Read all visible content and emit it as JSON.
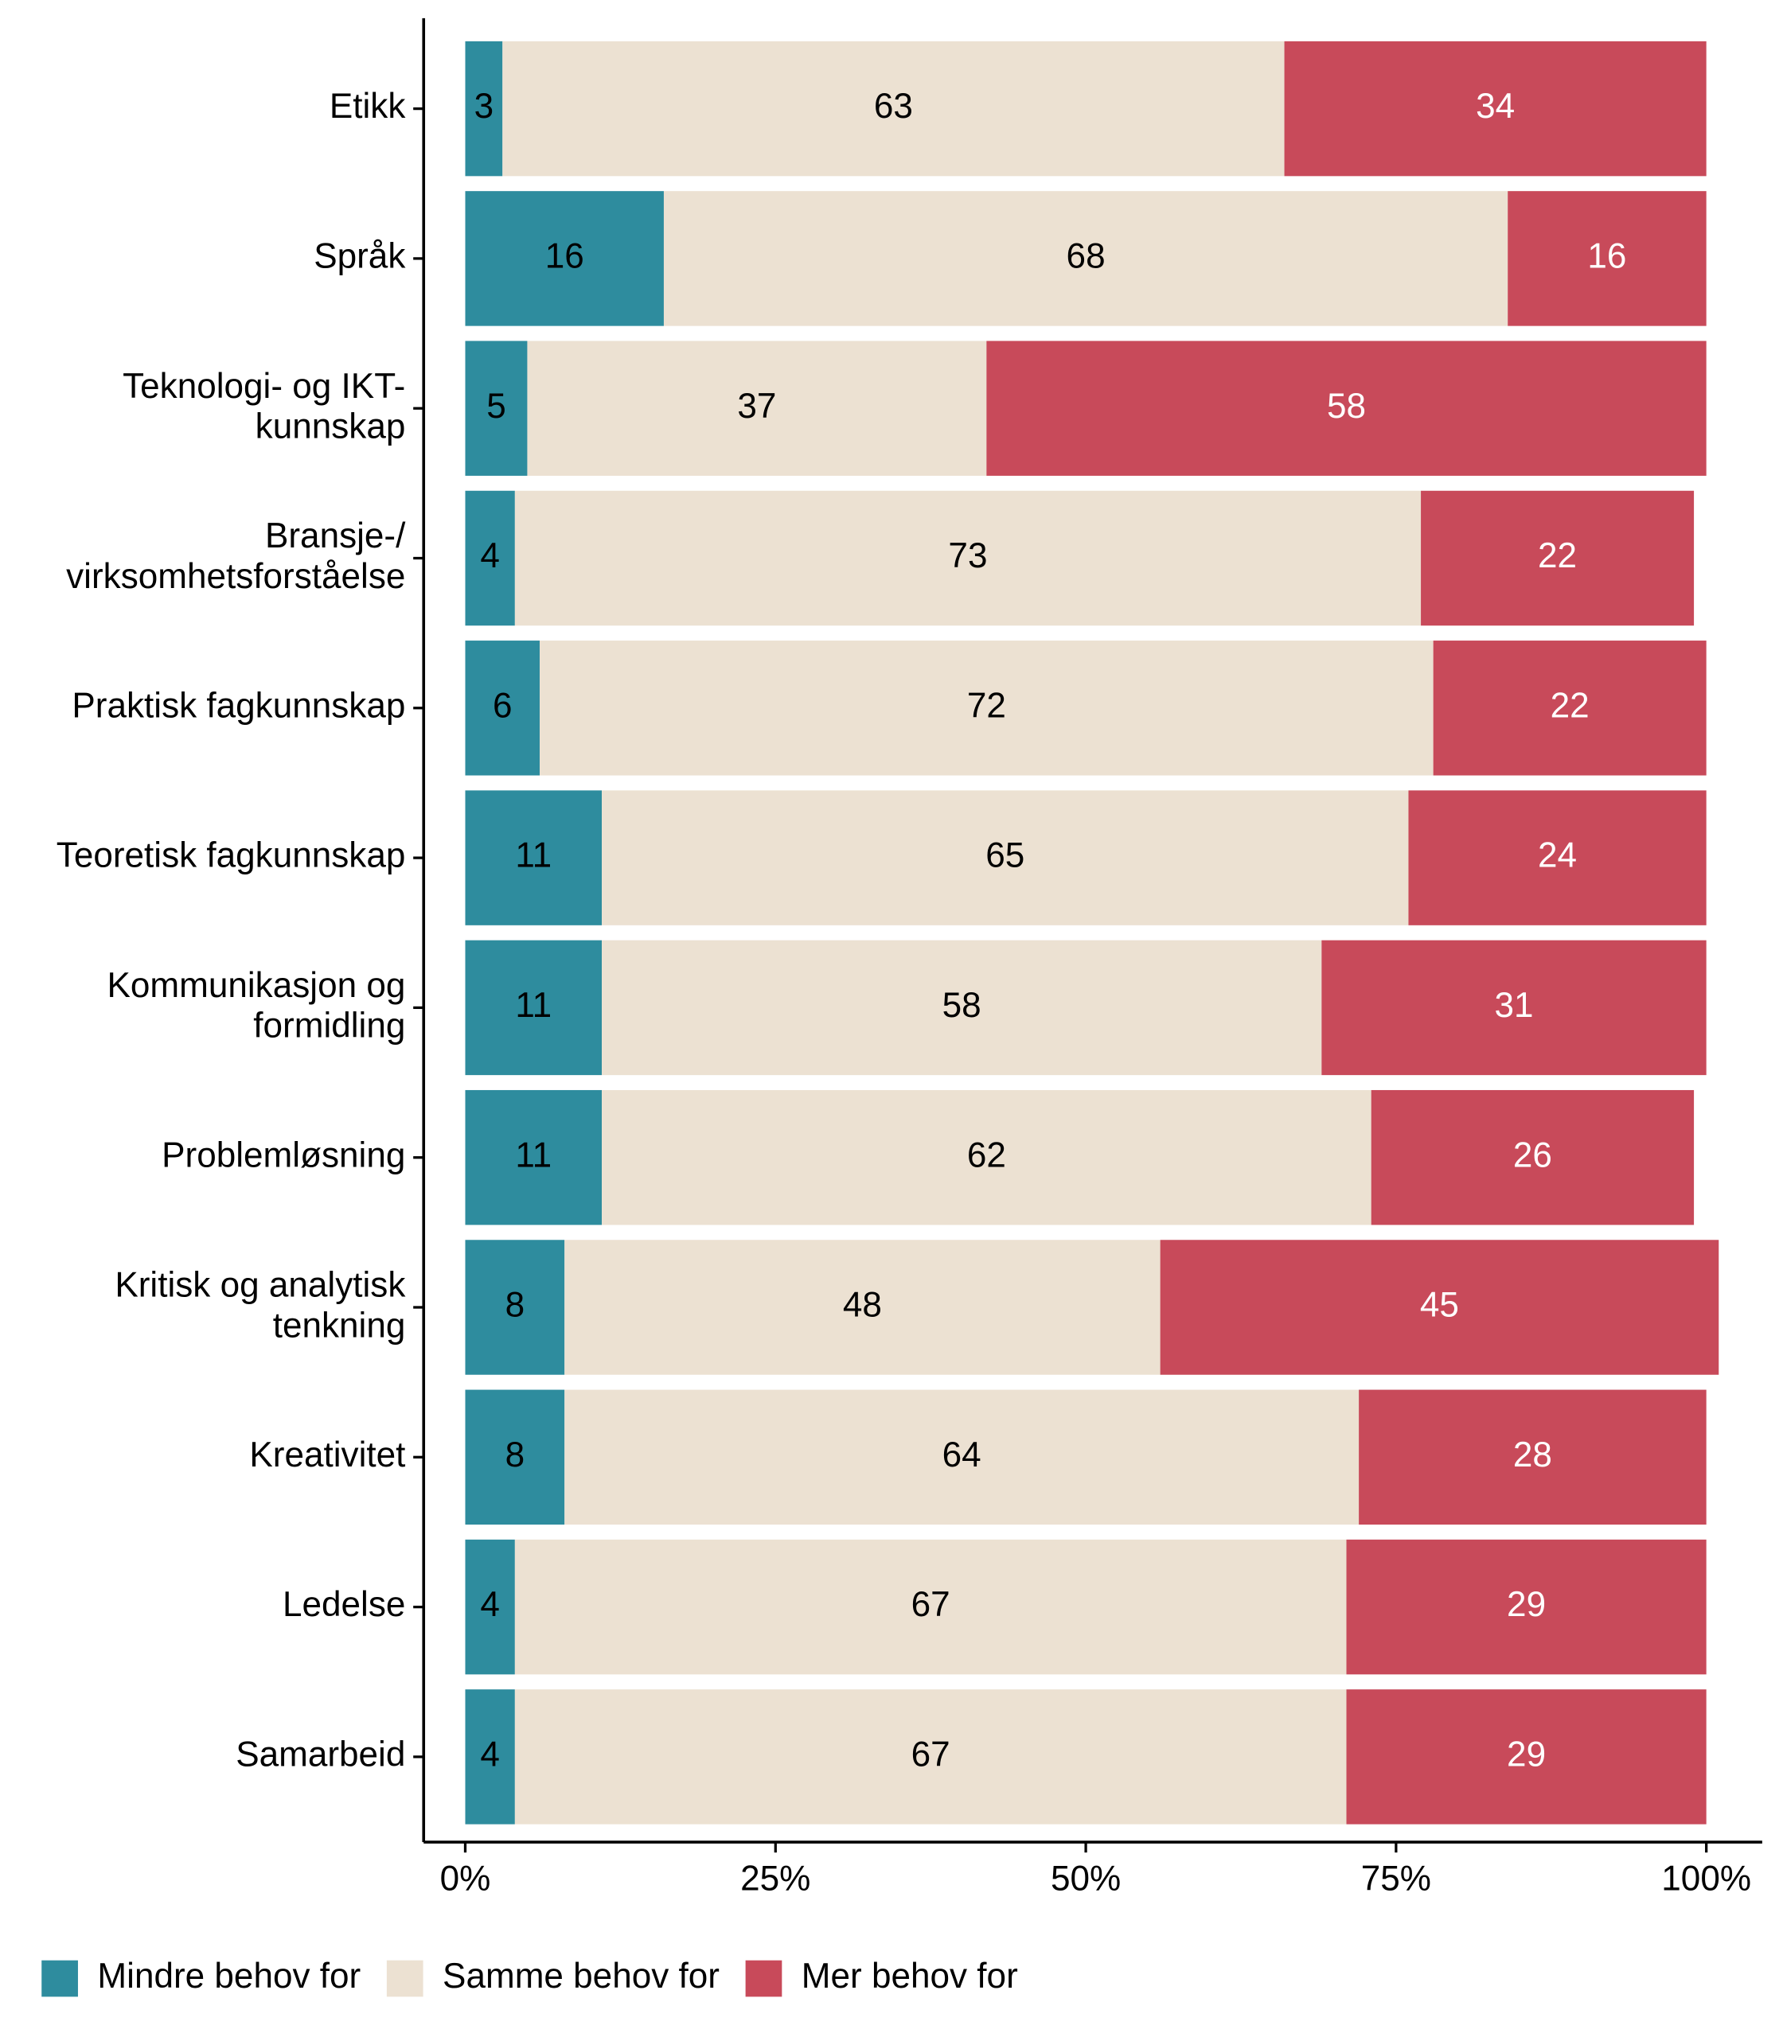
{
  "chart_data": {
    "type": "stacked-bar-horizontal",
    "categories": [
      "Etikk",
      "Språk",
      "Teknologi- og IKT-\nkunnskap",
      "Bransje-/\nvirksomhetsforståelse",
      "Praktisk fagkunnskap",
      "Teoretisk fagkunnskap",
      "Kommunikasjon og\nformidling",
      "Problemløsning",
      "Kritisk og analytisk\ntenkning",
      "Kreativitet",
      "Ledelse",
      "Samarbeid"
    ],
    "series": [
      {
        "name": "Mindre behov for",
        "color": "#2e8c9e",
        "label_color": "#000000",
        "values": [
          3,
          16,
          5,
          4,
          6,
          11,
          11,
          11,
          8,
          8,
          4,
          4
        ]
      },
      {
        "name": "Samme behov for",
        "color": "#ece1d2",
        "label_color": "#000000",
        "values": [
          63,
          68,
          37,
          73,
          72,
          65,
          58,
          62,
          48,
          64,
          67,
          67
        ]
      },
      {
        "name": "Mer behov for",
        "color": "#c84a5a",
        "label_color": "#ffffff",
        "values": [
          34,
          16,
          58,
          22,
          22,
          24,
          31,
          26,
          45,
          28,
          29,
          29
        ]
      }
    ],
    "xlim": [
      0,
      100
    ],
    "xticks": [
      {
        "value": 0,
        "label": "0%"
      },
      {
        "value": 25,
        "label": "25%"
      },
      {
        "value": 50,
        "label": "50%"
      },
      {
        "value": 75,
        "label": "75%"
      },
      {
        "value": 100,
        "label": "100%"
      }
    ],
    "legend": "bottom-left"
  }
}
